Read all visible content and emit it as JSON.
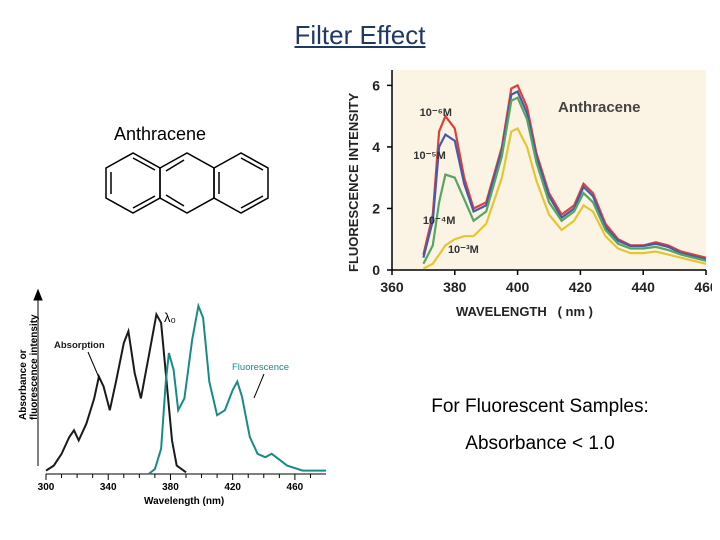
{
  "slide": {
    "title": "Filter Effect",
    "molecule_label": "Anthracene",
    "note_line1": "For Fluorescent Samples:",
    "note_line2": "Absorbance < 1.0"
  },
  "chart_data": [
    {
      "type": "line",
      "title": "Anthracene",
      "xlabel": "WAVELENGTH   ( nm )",
      "ylabel": "FLUORESCENCE INTENSITY",
      "xlim": [
        360,
        460
      ],
      "ylim": [
        0,
        6.5
      ],
      "x_ticks": [
        "360",
        "380",
        "400",
        "420",
        "440",
        "460"
      ],
      "y_ticks": [
        "0",
        "2",
        "4",
        "6"
      ],
      "background": "#fbf4e4",
      "series": [
        {
          "name": "10⁻⁶M",
          "color": "#d9413d",
          "points": [
            [
              370,
              0.5
            ],
            [
              373,
              1.8
            ],
            [
              375,
              4.5
            ],
            [
              377,
              5.0
            ],
            [
              380,
              4.6
            ],
            [
              383,
              3.0
            ],
            [
              386,
              2.0
            ],
            [
              390,
              2.2
            ],
            [
              395,
              4.0
            ],
            [
              398,
              5.9
            ],
            [
              400,
              6.0
            ],
            [
              403,
              5.3
            ],
            [
              406,
              3.8
            ],
            [
              410,
              2.5
            ],
            [
              414,
              1.8
            ],
            [
              418,
              2.1
            ],
            [
              421,
              2.8
            ],
            [
              424,
              2.5
            ],
            [
              428,
              1.5
            ],
            [
              432,
              1.0
            ],
            [
              436,
              0.8
            ],
            [
              440,
              0.8
            ],
            [
              444,
              0.9
            ],
            [
              448,
              0.8
            ],
            [
              452,
              0.6
            ],
            [
              456,
              0.5
            ],
            [
              460,
              0.4
            ]
          ]
        },
        {
          "name": "10⁻⁵M",
          "color": "#4a5aa8",
          "points": [
            [
              370,
              0.4
            ],
            [
              373,
              1.6
            ],
            [
              375,
              4.0
            ],
            [
              377,
              4.4
            ],
            [
              380,
              4.2
            ],
            [
              383,
              2.8
            ],
            [
              386,
              1.9
            ],
            [
              390,
              2.1
            ],
            [
              395,
              3.9
            ],
            [
              398,
              5.7
            ],
            [
              400,
              5.8
            ],
            [
              403,
              5.1
            ],
            [
              406,
              3.7
            ],
            [
              410,
              2.4
            ],
            [
              414,
              1.7
            ],
            [
              418,
              2.0
            ],
            [
              421,
              2.7
            ],
            [
              424,
              2.4
            ],
            [
              428,
              1.4
            ],
            [
              432,
              0.95
            ],
            [
              436,
              0.78
            ],
            [
              440,
              0.78
            ],
            [
              444,
              0.85
            ],
            [
              448,
              0.75
            ],
            [
              452,
              0.55
            ],
            [
              456,
              0.45
            ],
            [
              460,
              0.35
            ]
          ]
        },
        {
          "name": "10⁻⁴M",
          "color": "#57a563",
          "points": [
            [
              370,
              0.2
            ],
            [
              373,
              0.8
            ],
            [
              375,
              2.2
            ],
            [
              377,
              3.1
            ],
            [
              380,
              3.0
            ],
            [
              383,
              2.3
            ],
            [
              386,
              1.6
            ],
            [
              390,
              1.9
            ],
            [
              395,
              3.7
            ],
            [
              398,
              5.5
            ],
            [
              400,
              5.6
            ],
            [
              403,
              4.9
            ],
            [
              406,
              3.5
            ],
            [
              410,
              2.2
            ],
            [
              414,
              1.6
            ],
            [
              418,
              1.9
            ],
            [
              421,
              2.5
            ],
            [
              424,
              2.2
            ],
            [
              428,
              1.3
            ],
            [
              432,
              0.85
            ],
            [
              436,
              0.7
            ],
            [
              440,
              0.7
            ],
            [
              444,
              0.75
            ],
            [
              448,
              0.65
            ],
            [
              452,
              0.5
            ],
            [
              456,
              0.4
            ],
            [
              460,
              0.3
            ]
          ]
        },
        {
          "name": "10⁻³M",
          "color": "#e6c534",
          "points": [
            [
              370,
              0.05
            ],
            [
              373,
              0.2
            ],
            [
              375,
              0.5
            ],
            [
              377,
              0.8
            ],
            [
              380,
              1.0
            ],
            [
              383,
              1.1
            ],
            [
              386,
              1.1
            ],
            [
              390,
              1.5
            ],
            [
              395,
              3.0
            ],
            [
              398,
              4.5
            ],
            [
              400,
              4.6
            ],
            [
              403,
              4.0
            ],
            [
              406,
              2.9
            ],
            [
              410,
              1.8
            ],
            [
              414,
              1.3
            ],
            [
              418,
              1.6
            ],
            [
              421,
              2.1
            ],
            [
              424,
              1.9
            ],
            [
              428,
              1.1
            ],
            [
              432,
              0.7
            ],
            [
              436,
              0.55
            ],
            [
              440,
              0.55
            ],
            [
              444,
              0.6
            ],
            [
              448,
              0.5
            ],
            [
              452,
              0.4
            ],
            [
              456,
              0.3
            ],
            [
              460,
              0.2
            ]
          ]
        }
      ]
    },
    {
      "type": "line",
      "title": "",
      "xlabel": "Wavelength (nm)",
      "ylabel": "Absorbance or fluorescence intensity",
      "xlim": [
        300,
        480
      ],
      "ylim": [
        0,
        1.0
      ],
      "x_ticks": [
        "300",
        "340",
        "380",
        "420",
        "460"
      ],
      "peak_label": "λ₀",
      "series": [
        {
          "name": "Absorption",
          "color": "#1a1a1a",
          "points": [
            [
              300,
              0.02
            ],
            [
              305,
              0.05
            ],
            [
              310,
              0.12
            ],
            [
              315,
              0.22
            ],
            [
              318,
              0.26
            ],
            [
              321,
              0.2
            ],
            [
              326,
              0.3
            ],
            [
              331,
              0.45
            ],
            [
              334,
              0.58
            ],
            [
              337,
              0.52
            ],
            [
              341,
              0.38
            ],
            [
              345,
              0.55
            ],
            [
              350,
              0.78
            ],
            [
              353,
              0.85
            ],
            [
              357,
              0.6
            ],
            [
              361,
              0.45
            ],
            [
              366,
              0.7
            ],
            [
              371,
              0.95
            ],
            [
              374,
              0.9
            ],
            [
              377,
              0.6
            ],
            [
              381,
              0.2
            ],
            [
              384,
              0.05
            ],
            [
              390,
              0.01
            ]
          ]
        },
        {
          "name": "Fluorescence",
          "color": "#1a8a86",
          "points": [
            [
              366,
              0.0
            ],
            [
              370,
              0.03
            ],
            [
              374,
              0.15
            ],
            [
              377,
              0.55
            ],
            [
              379,
              0.72
            ],
            [
              382,
              0.62
            ],
            [
              385,
              0.38
            ],
            [
              389,
              0.45
            ],
            [
              394,
              0.8
            ],
            [
              398,
              1.0
            ],
            [
              401,
              0.93
            ],
            [
              405,
              0.55
            ],
            [
              410,
              0.35
            ],
            [
              415,
              0.38
            ],
            [
              420,
              0.5
            ],
            [
              423,
              0.55
            ],
            [
              426,
              0.46
            ],
            [
              431,
              0.22
            ],
            [
              436,
              0.12
            ],
            [
              441,
              0.1
            ],
            [
              445,
              0.12
            ],
            [
              448,
              0.1
            ],
            [
              455,
              0.05
            ],
            [
              465,
              0.02
            ],
            [
              480,
              0.02
            ]
          ]
        }
      ]
    }
  ]
}
